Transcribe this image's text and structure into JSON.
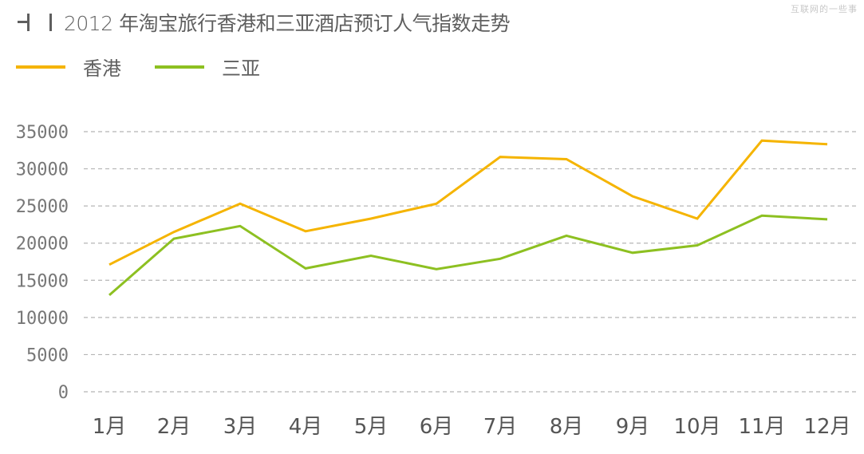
{
  "header": {
    "title": "2012 年淘宝旅行香港和三亚酒店预订人气指数走势",
    "watermark": "互联网的一些事",
    "icon": "title-bars-icon"
  },
  "legend": [
    {
      "label": "香港",
      "color": "#f5b400"
    },
    {
      "label": "三亚",
      "color": "#8dc021"
    }
  ],
  "chart_data": {
    "type": "line",
    "title": "2012 年淘宝旅行香港和三亚酒店预订人气指数走势",
    "xlabel": "",
    "ylabel": "",
    "categories": [
      "1月",
      "2月",
      "3月",
      "4月",
      "5月",
      "6月",
      "7月",
      "8月",
      "9月",
      "10月",
      "11月",
      "12月"
    ],
    "series": [
      {
        "name": "香港",
        "color": "#f5b400",
        "values": [
          17100,
          21500,
          25300,
          21600,
          23300,
          25300,
          31600,
          31300,
          26300,
          23300,
          33800,
          33300
        ]
      },
      {
        "name": "三亚",
        "color": "#8dc021",
        "values": [
          13000,
          20600,
          22300,
          16600,
          18300,
          16500,
          17900,
          21000,
          18700,
          19700,
          23700,
          23200
        ]
      }
    ],
    "yticks": [
      0,
      5000,
      10000,
      15000,
      20000,
      25000,
      30000,
      35000
    ],
    "ylim": [
      0,
      35000
    ],
    "grid": true,
    "grid_style": "dashed",
    "legend_position": "top-left"
  }
}
